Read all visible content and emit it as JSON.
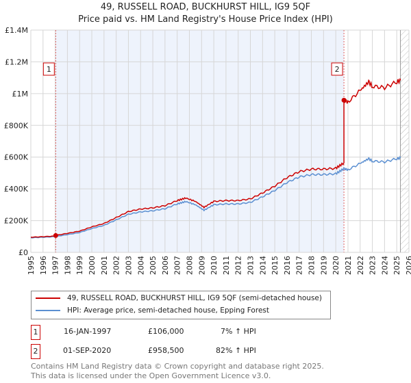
{
  "chart_data": {
    "type": "line",
    "title": "49, RUSSELL ROAD, BUCKHURST HILL, IG9 5QF",
    "subtitle": "Price paid vs. HM Land Registry's House Price Index (HPI)",
    "xlim": [
      1995,
      2026
    ],
    "ylim": [
      0,
      1400000
    ],
    "x_ticks": [
      "1995",
      "1996",
      "1997",
      "1998",
      "1999",
      "2000",
      "2001",
      "2002",
      "2003",
      "2004",
      "2005",
      "2006",
      "2007",
      "2008",
      "2009",
      "2010",
      "2011",
      "2012",
      "2013",
      "2014",
      "2015",
      "2016",
      "2017",
      "2018",
      "2019",
      "2020",
      "2021",
      "2022",
      "2023",
      "2024",
      "2025",
      "2026"
    ],
    "y_ticks": [
      {
        "v": 0,
        "label": "£0"
      },
      {
        "v": 200000,
        "label": "£200K"
      },
      {
        "v": 400000,
        "label": "£400K"
      },
      {
        "v": 600000,
        "label": "£600K"
      },
      {
        "v": 800000,
        "label": "£800K"
      },
      {
        "v": 1000000,
        "label": "£1M"
      },
      {
        "v": 1200000,
        "label": "£1.2M"
      },
      {
        "v": 1400000,
        "label": "£1.4M"
      }
    ],
    "hpi_series": {
      "name": "HPI: Average price, semi-detached house, Epping Forest",
      "color": "#5b8fd1",
      "x": [
        1995,
        1996,
        1997,
        1998,
        1999,
        2000,
        2001,
        2002,
        2003,
        2004,
        2005,
        2006,
        2007,
        2007.7,
        2008.5,
        2009.2,
        2010,
        2011,
        2012,
        2013,
        2014,
        2015,
        2016,
        2017,
        2018,
        2019,
        2020,
        2020.67,
        2021,
        2022,
        2022.7,
        2023,
        2024,
        2025,
        2025.3
      ],
      "y": [
        92000,
        95000,
        99000,
        112000,
        125000,
        150000,
        170000,
        205000,
        240000,
        255000,
        262000,
        275000,
        305000,
        320000,
        300000,
        265000,
        300000,
        305000,
        305000,
        315000,
        350000,
        390000,
        440000,
        475000,
        490000,
        490000,
        495000,
        527000,
        520000,
        560000,
        590000,
        575000,
        570000,
        590000,
        595000
      ]
    },
    "property_series": {
      "name": "49, RUSSELL ROAD, BUCKHURST HILL, IG9 5QF (semi-detached house)",
      "color": "#cc0000"
    },
    "sales": [
      {
        "id": "1",
        "x": 1997.04,
        "date": "16-JAN-1997",
        "price": 106000,
        "price_label": "£106,000",
        "hpi": "7% ↑ HPI",
        "factor": 1.07
      },
      {
        "id": "2",
        "x": 2020.67,
        "date": "01-SEP-2020",
        "price": 958500,
        "price_label": "£958,500",
        "hpi": "82% ↑ HPI",
        "factor": 1.82
      }
    ],
    "future_from": 2025.3,
    "footer1": "Contains HM Land Registry data © Crown copyright and database right 2025.",
    "footer2": "This data is licensed under the Open Government Licence v3.0."
  }
}
